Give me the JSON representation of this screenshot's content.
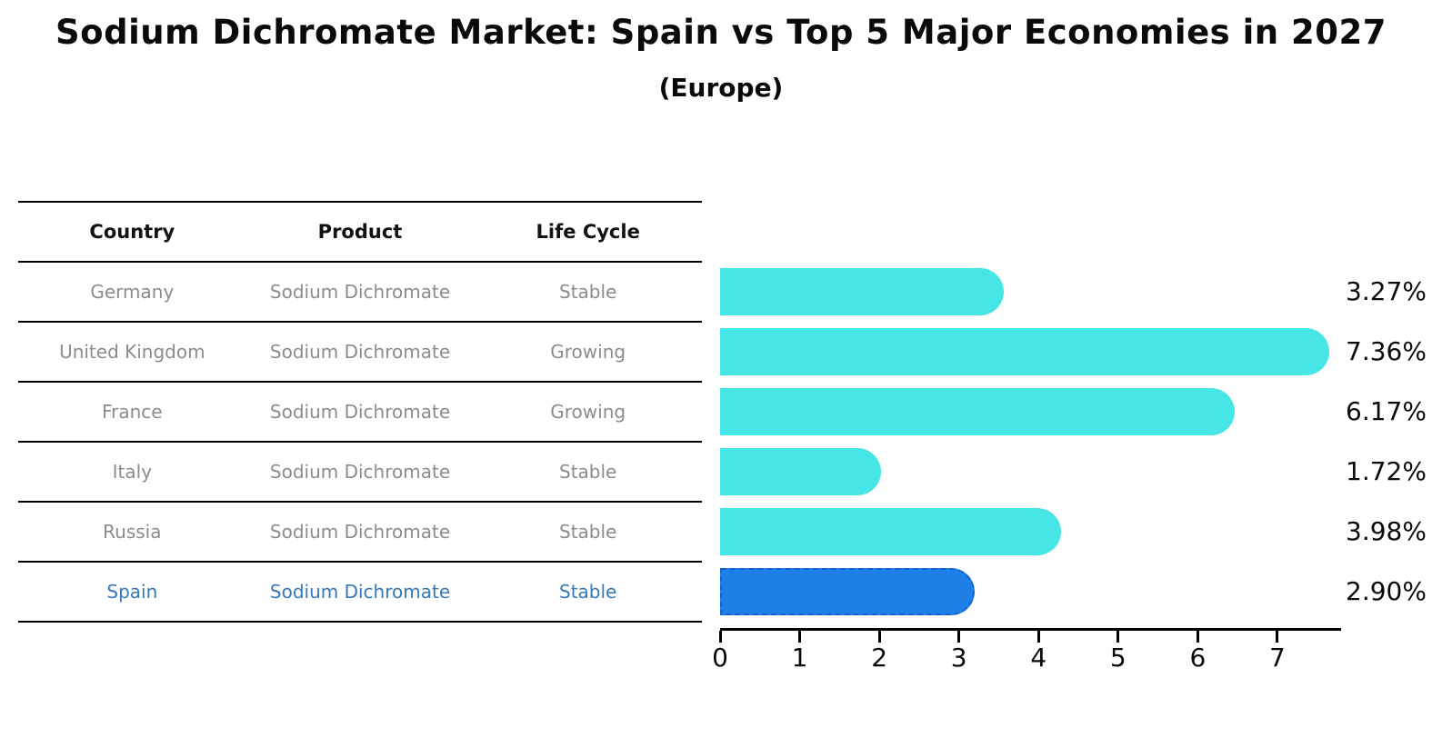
{
  "title": "Sodium Dichromate Market: Spain vs Top 5 Major Economies in 2027",
  "subtitle": "(Europe)",
  "table": {
    "headers": [
      "Country",
      "Product",
      "Life Cycle"
    ],
    "rows": [
      {
        "country": "Germany",
        "product": "Sodium Dichromate",
        "life_cycle": "Stable",
        "highlight": false
      },
      {
        "country": "United Kingdom",
        "product": "Sodium Dichromate",
        "life_cycle": "Growing",
        "highlight": false
      },
      {
        "country": "France",
        "product": "Sodium Dichromate",
        "life_cycle": "Growing",
        "highlight": false
      },
      {
        "country": "Italy",
        "product": "Sodium Dichromate",
        "life_cycle": "Stable",
        "highlight": false
      },
      {
        "country": "Russia",
        "product": "Sodium Dichromate",
        "life_cycle": "Stable",
        "highlight": true
      }
    ]
  },
  "chart_data": {
    "type": "bar",
    "orientation": "horizontal",
    "title": "Sodium Dichromate Market: Spain vs Top 5 Major Economies in 2027 (Europe)",
    "categories": [
      "Germany",
      "United Kingdom",
      "France",
      "Italy",
      "Russia",
      "Spain"
    ],
    "values": [
      3.27,
      7.36,
      6.17,
      1.72,
      3.98,
      2.9
    ],
    "value_labels": [
      "3.27%",
      "7.36%",
      "6.17%",
      "1.72%",
      "3.98%",
      "2.90%"
    ],
    "x_ticks": [
      0,
      1,
      2,
      3,
      4,
      5,
      6,
      7
    ],
    "xlim": [
      0,
      7.8
    ],
    "grid": false,
    "legend": "none",
    "bar_color": "#47e6e6",
    "highlight_bar_color": "#1f7fe8",
    "highlight_index": 5
  },
  "spain_row": {
    "country": "Spain",
    "product": "Sodium Dichromate",
    "life_cycle": "Stable",
    "highlight": true
  },
  "colors": {
    "background": "#ffffff",
    "bar_cyan": "#47e6e6",
    "bar_blue": "#1f7fe8",
    "highlight_text": "#3579b8",
    "row_text": "#8c8c8c",
    "header_text": "#111111"
  }
}
